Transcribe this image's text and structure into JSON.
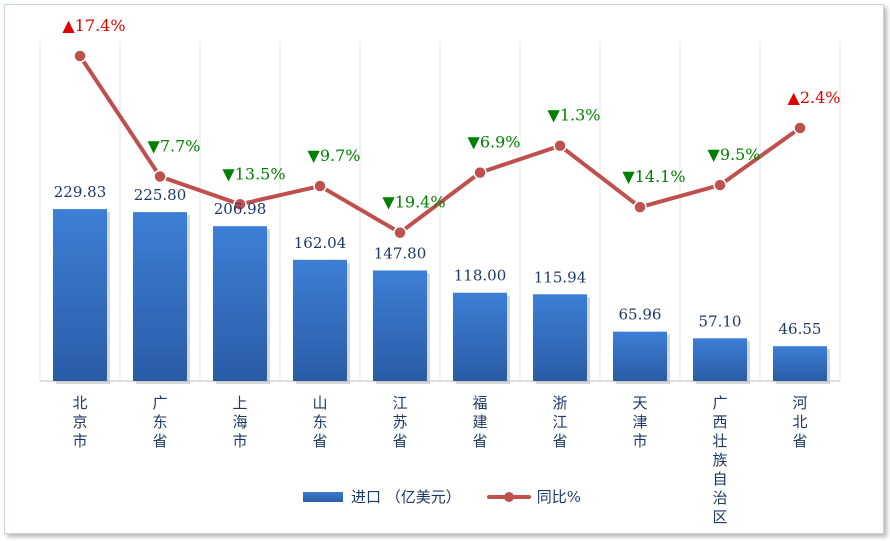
{
  "chart_data": {
    "type": "bar+line",
    "categories": [
      "北京市",
      "广东省",
      "上海市",
      "山东省",
      "江苏省",
      "福建省",
      "浙江省",
      "天津市",
      "广西壮族自治区",
      "河北省"
    ],
    "series": [
      {
        "name": "进口（亿美元）",
        "type": "bar",
        "axis": "primary",
        "values": [
          229.83,
          225.8,
          206.98,
          162.04,
          147.8,
          118.0,
          115.94,
          65.96,
          57.1,
          46.55
        ],
        "labels": [
          "229.83",
          "225.80",
          "206.98",
          "162.04",
          "147.80",
          "118.00",
          "115.94",
          "65.96",
          "57.10",
          "46.55"
        ]
      },
      {
        "name": "同比%",
        "type": "line",
        "axis": "secondary",
        "values": [
          17.4,
          -7.7,
          -13.5,
          -9.7,
          -19.4,
          -6.9,
          -1.3,
          -14.1,
          -9.5,
          2.4
        ],
        "labels": [
          "▲17.4%",
          "▼7.7%",
          "▼13.5%",
          "▼9.7%",
          "▼19.4%",
          "▼6.9%",
          "▼1.3%",
          "▼14.1%",
          "▼9.5%",
          "▲2.4%"
        ]
      }
    ],
    "legend": {
      "position": "bottom",
      "bar_label": "进口 （亿美元）",
      "line_label": "同比%"
    },
    "colors": {
      "bar": "#3a78cc",
      "line": "#c0504d",
      "up": "#e00000",
      "down": "#008000",
      "text": "#1f3864"
    }
  }
}
